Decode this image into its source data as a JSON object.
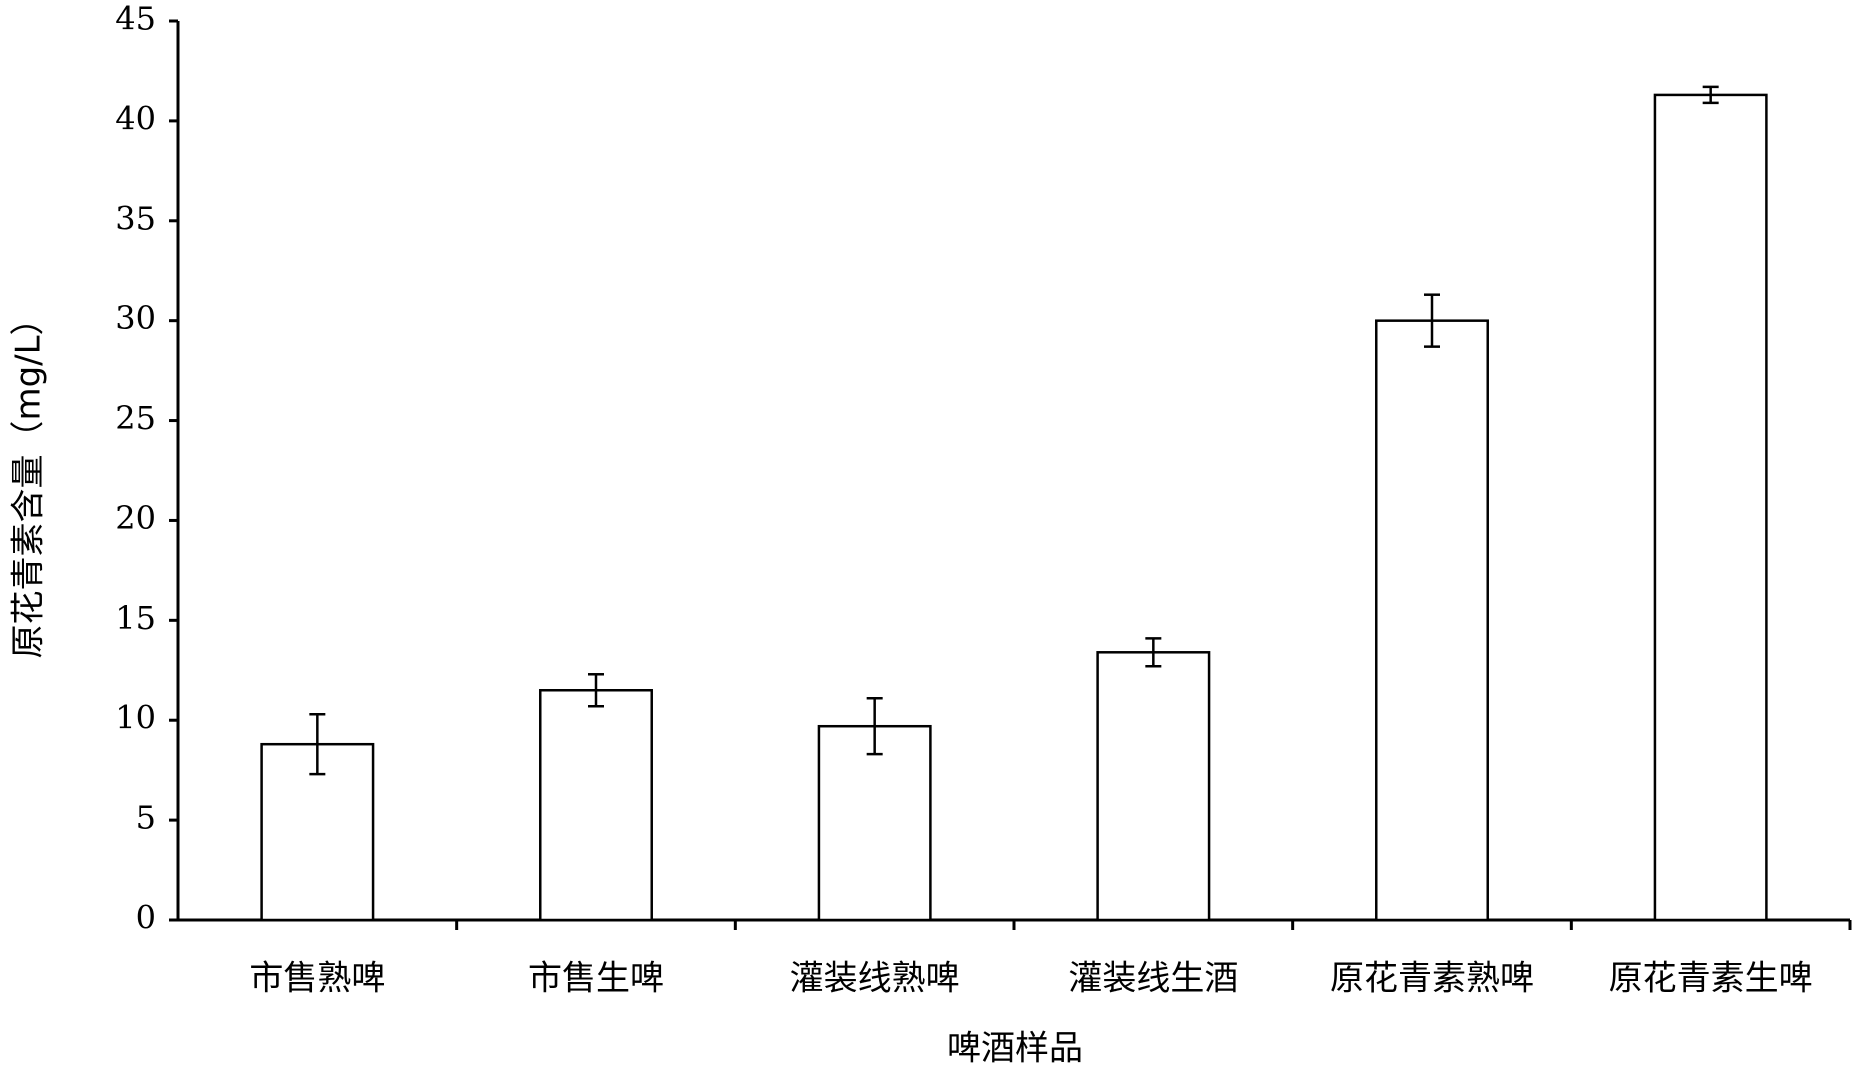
{
  "chart_data": {
    "type": "bar",
    "y_label": "原花青素含量（mg/L）",
    "x_label": "啤酒样品",
    "categories": [
      "市售熟啤",
      "市售生啤",
      "灌装线熟啤",
      "灌装线生酒",
      "原花青素熟啤",
      "原花青素生啤"
    ],
    "values": [
      8.8,
      11.5,
      9.7,
      13.4,
      30.0,
      41.3
    ],
    "errors": [
      1.5,
      0.8,
      1.4,
      0.7,
      1.3,
      0.4
    ],
    "color": "#ffffff",
    "ylim": [
      0,
      45
    ],
    "yticks": [
      0,
      5,
      10,
      15,
      20,
      25,
      30,
      35,
      40,
      45
    ]
  }
}
